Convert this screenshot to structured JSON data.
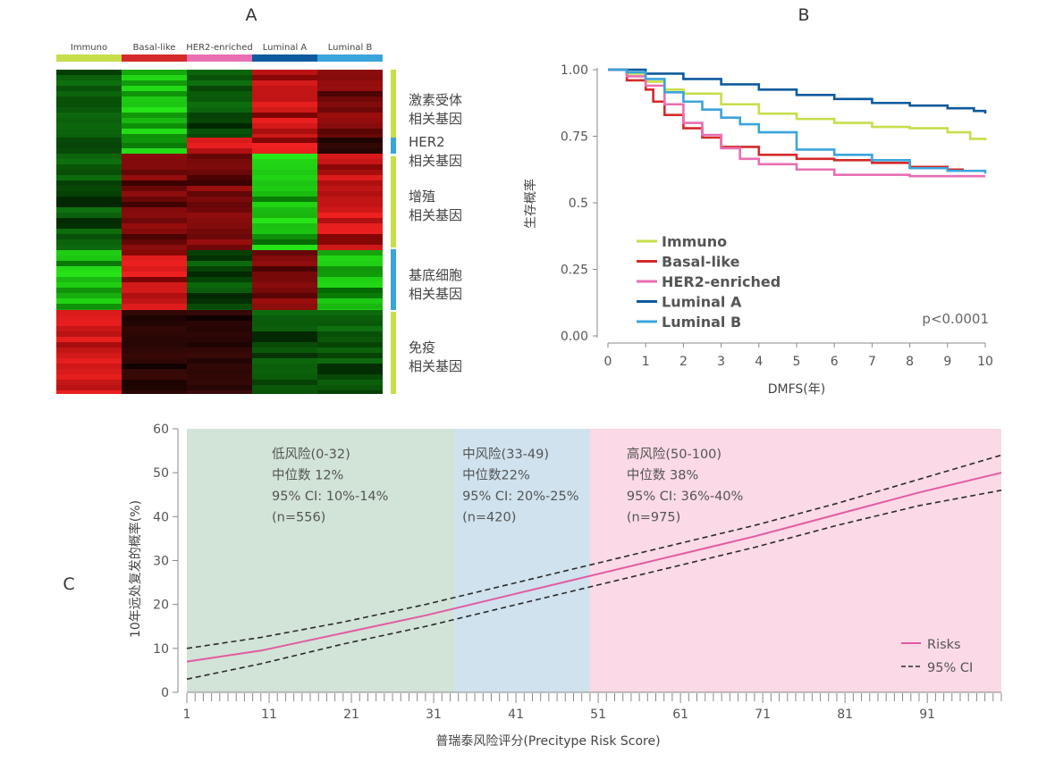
{
  "panels": {
    "a": "A",
    "b": "B",
    "c": "C"
  },
  "colors": {
    "immuno": "#c7de4a",
    "basal": "#d42a2a",
    "her2": "#e96fb2",
    "luminal_a": "#0e5a9e",
    "luminal_b": "#3aa4dc",
    "low_zone": "#d2e3d7",
    "mid_zone": "#cfe2ee",
    "high_zone": "#fbd9e6",
    "risk_line": "#e25ba3"
  },
  "heatmap": {
    "columns": [
      "Immuno",
      "Basal-like",
      "HER2-enriched",
      "Luminal A",
      "Luminal B"
    ],
    "gene_groups": [
      {
        "lines": [
          "激素受体",
          "相关基因"
        ]
      },
      {
        "lines": [
          "HER2",
          "相关基因"
        ]
      },
      {
        "lines": [
          "增殖",
          "相关基因"
        ]
      },
      {
        "lines": [
          "基底细胞",
          "相关基因"
        ]
      },
      {
        "lines": [
          "免疫",
          "相关基因"
        ]
      }
    ]
  },
  "chart_data": [
    {
      "type": "line",
      "panel": "B",
      "xlabel": "DMFS(年)",
      "ylabel": "生存概率",
      "xlim": [
        0,
        10
      ],
      "ylim": [
        0,
        1
      ],
      "xticks": [
        "0",
        "1",
        "2",
        "3",
        "4",
        "5",
        "6",
        "7",
        "8",
        "9",
        "10"
      ],
      "yticks": [
        "0.00",
        "0.25",
        "0.5",
        "0.75",
        "1.00"
      ],
      "legend_position": "bottom-left",
      "annotation": "p<0.0001",
      "series": [
        {
          "name": "Immuno",
          "color_key": "immuno",
          "x": [
            0,
            0.5,
            1,
            1.5,
            2,
            3,
            4,
            5,
            6,
            7,
            8,
            9,
            9.6,
            10
          ],
          "y": [
            1.0,
            0.985,
            0.955,
            0.925,
            0.91,
            0.87,
            0.835,
            0.815,
            0.8,
            0.785,
            0.78,
            0.765,
            0.74,
            0.735
          ]
        },
        {
          "name": "Basal-like",
          "color_key": "basal",
          "x": [
            0,
            0.5,
            1,
            1.2,
            1.5,
            2,
            2.5,
            3,
            4,
            5,
            6,
            7,
            8,
            9,
            9.4
          ],
          "y": [
            1.0,
            0.96,
            0.925,
            0.88,
            0.83,
            0.78,
            0.745,
            0.71,
            0.68,
            0.665,
            0.66,
            0.65,
            0.635,
            0.625,
            0.62
          ]
        },
        {
          "name": "HER2-enriched",
          "color_key": "her2",
          "x": [
            0,
            0.5,
            1,
            1.5,
            2,
            2.5,
            3,
            3.5,
            4,
            5,
            6,
            7,
            8,
            9,
            10
          ],
          "y": [
            1.0,
            0.975,
            0.94,
            0.87,
            0.8,
            0.755,
            0.705,
            0.665,
            0.645,
            0.625,
            0.605,
            0.605,
            0.6,
            0.6,
            0.6
          ]
        },
        {
          "name": "Luminal A",
          "color_key": "luminal_a",
          "x": [
            0,
            1,
            2,
            3,
            4,
            5,
            6,
            7,
            8,
            9,
            9.7,
            10
          ],
          "y": [
            1.0,
            0.985,
            0.965,
            0.945,
            0.925,
            0.905,
            0.89,
            0.875,
            0.865,
            0.855,
            0.845,
            0.835
          ]
        },
        {
          "name": "Luminal B",
          "color_key": "luminal_b",
          "x": [
            0,
            0.5,
            1,
            1.5,
            2,
            2.5,
            3,
            3.5,
            4,
            5,
            6,
            7,
            8,
            9,
            10
          ],
          "y": [
            1.0,
            0.99,
            0.965,
            0.915,
            0.88,
            0.85,
            0.82,
            0.795,
            0.765,
            0.7,
            0.68,
            0.66,
            0.63,
            0.62,
            0.61
          ]
        }
      ]
    },
    {
      "type": "line",
      "panel": "C",
      "xlabel": "普瑞泰风险评分(Precitype Risk Score)",
      "ylabel": "10年远处复发的概率(%)",
      "xlim": [
        1,
        100
      ],
      "ylim": [
        0,
        60
      ],
      "xticks": [
        "1",
        "11",
        "21",
        "31",
        "41",
        "51",
        "61",
        "71",
        "81",
        "91"
      ],
      "yticks": [
        "0",
        "10",
        "20",
        "30",
        "40",
        "50",
        "60"
      ],
      "legend_position": "bottom-right",
      "zones": [
        {
          "from": 1,
          "to": 33.5,
          "color_key": "low_zone",
          "lines": [
            "低风险(0-32)",
            "中位数 12%",
            "95% CI: 10%-14%",
            "(n=556)"
          ]
        },
        {
          "from": 33.5,
          "to": 50,
          "color_key": "mid_zone",
          "lines": [
            "中风险(33-49)",
            "中位数22%",
            "95% CI: 20%-25%",
            "(n=420)"
          ]
        },
        {
          "from": 50,
          "to": 100,
          "color_key": "high_zone",
          "lines": [
            "高风险(50-100)",
            "中位数 38%",
            "95% CI: 36%-40%",
            "(n=975)"
          ]
        }
      ],
      "series": [
        {
          "name": "Risks",
          "style": "solid",
          "x": [
            1,
            10,
            20,
            30,
            40,
            50,
            60,
            70,
            80,
            90,
            100
          ],
          "y": [
            7,
            9.5,
            13.5,
            17.5,
            22,
            26.5,
            31,
            35.5,
            40.5,
            45.5,
            50
          ]
        },
        {
          "name": "95% CI",
          "style": "dashed",
          "x": [
            1,
            10,
            20,
            30,
            40,
            50,
            60,
            70,
            80,
            90,
            100
          ],
          "y": [
            10,
            12.5,
            16,
            20,
            24.5,
            29,
            33.5,
            38,
            43,
            48.5,
            54
          ]
        },
        {
          "style": "dashed",
          "x": [
            1,
            10,
            20,
            30,
            40,
            50,
            60,
            70,
            80,
            90,
            100
          ],
          "y": [
            3,
            6.5,
            11,
            15,
            19.5,
            24,
            28.5,
            33,
            38,
            42.5,
            46
          ]
        }
      ]
    }
  ]
}
